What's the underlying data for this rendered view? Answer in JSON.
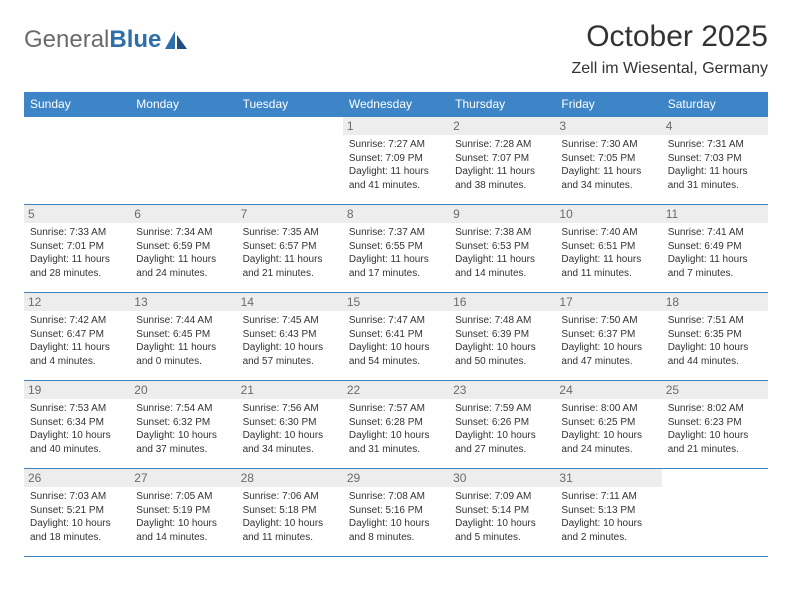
{
  "logo": {
    "text1": "General",
    "text2": "Blue"
  },
  "title": "October 2025",
  "location": "Zell im Wiesental, Germany",
  "colors": {
    "header_bg": "#3d85c6",
    "header_fg": "#ffffff",
    "rule": "#3d85c6",
    "daynum_bg": "#ededed",
    "daynum_fg": "#6b6b6b",
    "text": "#333333",
    "logo_gray": "#6b6b6b",
    "logo_blue": "#2f6ea8"
  },
  "weekdays": [
    "Sunday",
    "Monday",
    "Tuesday",
    "Wednesday",
    "Thursday",
    "Friday",
    "Saturday"
  ],
  "weeks": [
    [
      null,
      null,
      null,
      {
        "n": "1",
        "sr": "7:27 AM",
        "ss": "7:09 PM",
        "dl": "11 hours and 41 minutes."
      },
      {
        "n": "2",
        "sr": "7:28 AM",
        "ss": "7:07 PM",
        "dl": "11 hours and 38 minutes."
      },
      {
        "n": "3",
        "sr": "7:30 AM",
        "ss": "7:05 PM",
        "dl": "11 hours and 34 minutes."
      },
      {
        "n": "4",
        "sr": "7:31 AM",
        "ss": "7:03 PM",
        "dl": "11 hours and 31 minutes."
      }
    ],
    [
      {
        "n": "5",
        "sr": "7:33 AM",
        "ss": "7:01 PM",
        "dl": "11 hours and 28 minutes."
      },
      {
        "n": "6",
        "sr": "7:34 AM",
        "ss": "6:59 PM",
        "dl": "11 hours and 24 minutes."
      },
      {
        "n": "7",
        "sr": "7:35 AM",
        "ss": "6:57 PM",
        "dl": "11 hours and 21 minutes."
      },
      {
        "n": "8",
        "sr": "7:37 AM",
        "ss": "6:55 PM",
        "dl": "11 hours and 17 minutes."
      },
      {
        "n": "9",
        "sr": "7:38 AM",
        "ss": "6:53 PM",
        "dl": "11 hours and 14 minutes."
      },
      {
        "n": "10",
        "sr": "7:40 AM",
        "ss": "6:51 PM",
        "dl": "11 hours and 11 minutes."
      },
      {
        "n": "11",
        "sr": "7:41 AM",
        "ss": "6:49 PM",
        "dl": "11 hours and 7 minutes."
      }
    ],
    [
      {
        "n": "12",
        "sr": "7:42 AM",
        "ss": "6:47 PM",
        "dl": "11 hours and 4 minutes."
      },
      {
        "n": "13",
        "sr": "7:44 AM",
        "ss": "6:45 PM",
        "dl": "11 hours and 0 minutes."
      },
      {
        "n": "14",
        "sr": "7:45 AM",
        "ss": "6:43 PM",
        "dl": "10 hours and 57 minutes."
      },
      {
        "n": "15",
        "sr": "7:47 AM",
        "ss": "6:41 PM",
        "dl": "10 hours and 54 minutes."
      },
      {
        "n": "16",
        "sr": "7:48 AM",
        "ss": "6:39 PM",
        "dl": "10 hours and 50 minutes."
      },
      {
        "n": "17",
        "sr": "7:50 AM",
        "ss": "6:37 PM",
        "dl": "10 hours and 47 minutes."
      },
      {
        "n": "18",
        "sr": "7:51 AM",
        "ss": "6:35 PM",
        "dl": "10 hours and 44 minutes."
      }
    ],
    [
      {
        "n": "19",
        "sr": "7:53 AM",
        "ss": "6:34 PM",
        "dl": "10 hours and 40 minutes."
      },
      {
        "n": "20",
        "sr": "7:54 AM",
        "ss": "6:32 PM",
        "dl": "10 hours and 37 minutes."
      },
      {
        "n": "21",
        "sr": "7:56 AM",
        "ss": "6:30 PM",
        "dl": "10 hours and 34 minutes."
      },
      {
        "n": "22",
        "sr": "7:57 AM",
        "ss": "6:28 PM",
        "dl": "10 hours and 31 minutes."
      },
      {
        "n": "23",
        "sr": "7:59 AM",
        "ss": "6:26 PM",
        "dl": "10 hours and 27 minutes."
      },
      {
        "n": "24",
        "sr": "8:00 AM",
        "ss": "6:25 PM",
        "dl": "10 hours and 24 minutes."
      },
      {
        "n": "25",
        "sr": "8:02 AM",
        "ss": "6:23 PM",
        "dl": "10 hours and 21 minutes."
      }
    ],
    [
      {
        "n": "26",
        "sr": "7:03 AM",
        "ss": "5:21 PM",
        "dl": "10 hours and 18 minutes."
      },
      {
        "n": "27",
        "sr": "7:05 AM",
        "ss": "5:19 PM",
        "dl": "10 hours and 14 minutes."
      },
      {
        "n": "28",
        "sr": "7:06 AM",
        "ss": "5:18 PM",
        "dl": "10 hours and 11 minutes."
      },
      {
        "n": "29",
        "sr": "7:08 AM",
        "ss": "5:16 PM",
        "dl": "10 hours and 8 minutes."
      },
      {
        "n": "30",
        "sr": "7:09 AM",
        "ss": "5:14 PM",
        "dl": "10 hours and 5 minutes."
      },
      {
        "n": "31",
        "sr": "7:11 AM",
        "ss": "5:13 PM",
        "dl": "10 hours and 2 minutes."
      },
      null
    ]
  ],
  "labels": {
    "sunrise": "Sunrise: ",
    "sunset": "Sunset: ",
    "daylight": "Daylight: "
  }
}
